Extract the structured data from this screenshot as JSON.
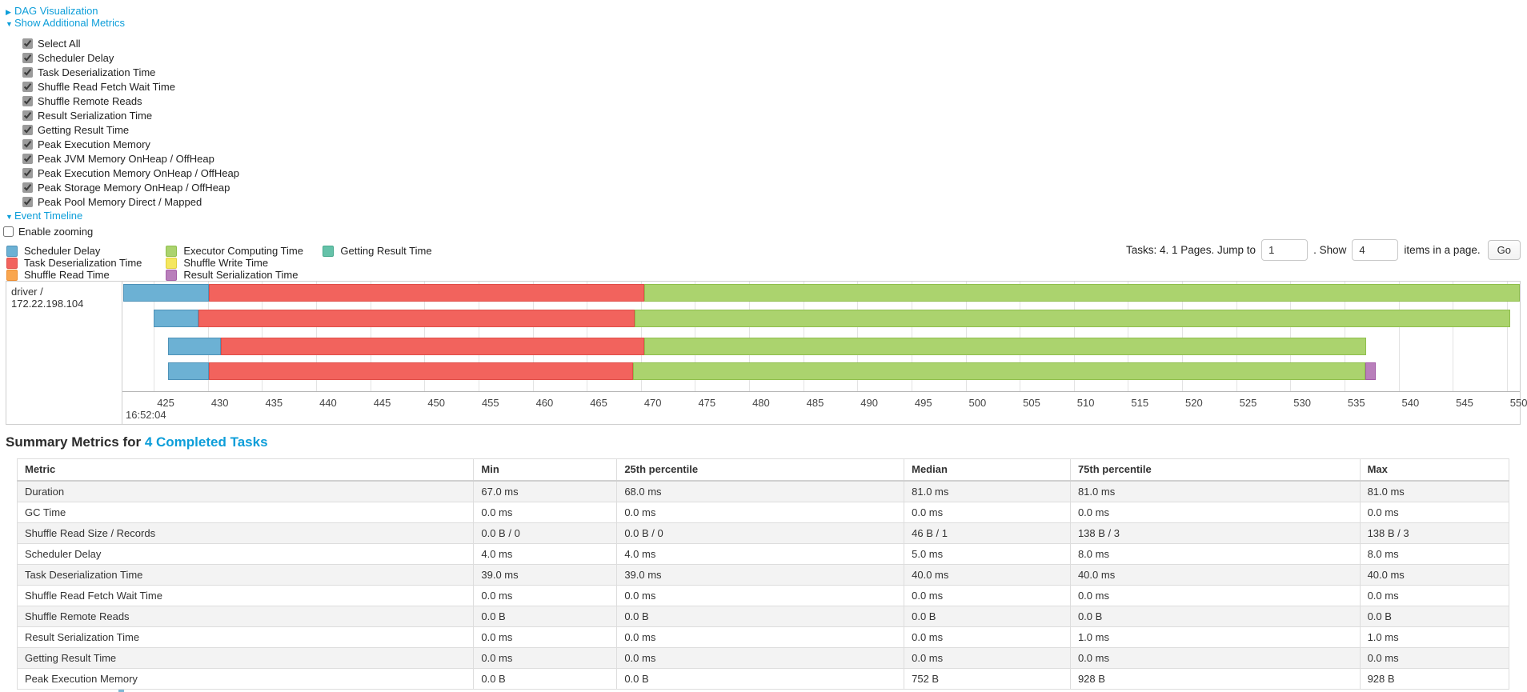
{
  "colors": {
    "link": "#0d9ed9",
    "scheduler_delay": {
      "fill": "#6CB1D4",
      "border": "#4E92B8"
    },
    "task_deserialization": {
      "fill": "#F2635D",
      "border": "#E04E48"
    },
    "shuffle_read": {
      "fill": "#F9A64F",
      "border": "#ED8B2D"
    },
    "executor_computing": {
      "fill": "#ABD36E",
      "border": "#8FBE4D"
    },
    "shuffle_write": {
      "fill": "#F5E75F",
      "border": "#E0CF3E"
    },
    "result_serialization": {
      "fill": "#B97FBB",
      "border": "#A55FA8"
    },
    "getting_result": {
      "fill": "#65C2A9",
      "border": "#45A98C"
    }
  },
  "controls": {
    "dag_label": "DAG Visualization",
    "dag_arrow": "▶",
    "metrics_label": "Show Additional Metrics",
    "metrics_arrow": "▼",
    "checkboxes": [
      {
        "label": "Select All",
        "checked": true
      },
      {
        "label": "Scheduler Delay",
        "checked": true
      },
      {
        "label": "Task Deserialization Time",
        "checked": true
      },
      {
        "label": "Shuffle Read Fetch Wait Time",
        "checked": true
      },
      {
        "label": "Shuffle Remote Reads",
        "checked": true
      },
      {
        "label": "Result Serialization Time",
        "checked": true
      },
      {
        "label": "Getting Result Time",
        "checked": true
      },
      {
        "label": "Peak Execution Memory",
        "checked": true
      },
      {
        "label": "Peak JVM Memory OnHeap / OffHeap",
        "checked": true
      },
      {
        "label": "Peak Execution Memory OnHeap / OffHeap",
        "checked": true
      },
      {
        "label": "Peak Storage Memory OnHeap / OffHeap",
        "checked": true
      },
      {
        "label": "Peak Pool Memory Direct / Mapped",
        "checked": true
      }
    ],
    "event_timeline_label": "Event Timeline",
    "event_timeline_arrow": "▼",
    "enable_zooming": {
      "label": "Enable zooming",
      "checked": false
    }
  },
  "legend": {
    "columns": [
      [
        {
          "label": "Scheduler Delay",
          "color": "scheduler_delay"
        },
        {
          "label": "Task Deserialization Time",
          "color": "task_deserialization"
        },
        {
          "label": "Shuffle Read Time",
          "color": "shuffle_read"
        }
      ],
      [
        {
          "label": "Executor Computing Time",
          "color": "executor_computing"
        },
        {
          "label": "Shuffle Write Time",
          "color": "shuffle_write"
        },
        {
          "label": "Result Serialization Time",
          "color": "result_serialization"
        }
      ],
      [
        {
          "label": "Getting Result Time",
          "color": "getting_result"
        }
      ]
    ]
  },
  "pagination": {
    "tasks_text": "Tasks: 4. 1 Pages. Jump to",
    "jump_value": "1",
    "show_text": ". Show",
    "show_value": "4",
    "items_text": "items in a page.",
    "go_label": "Go"
  },
  "timeline": {
    "row_label": "driver / 172.22.198.104",
    "t_min": 422.1,
    "t_max": 551.2,
    "ticks": [
      425,
      430,
      435,
      440,
      445,
      450,
      455,
      460,
      465,
      470,
      475,
      480,
      485,
      490,
      495,
      500,
      505,
      510,
      515,
      520,
      525,
      530,
      535,
      540,
      545,
      550
    ],
    "axis_sub_label": "16:52:04",
    "bars": [
      {
        "top": 3,
        "segments": [
          {
            "color": "scheduler_delay",
            "start": 422.2,
            "end": 430.1
          },
          {
            "color": "task_deserialization",
            "start": 430.1,
            "end": 470.3
          },
          {
            "color": "executor_computing",
            "start": 470.3,
            "end": 551.2
          }
        ]
      },
      {
        "top": 35,
        "segments": [
          {
            "color": "scheduler_delay",
            "start": 425.0,
            "end": 429.1
          },
          {
            "color": "task_deserialization",
            "start": 429.1,
            "end": 469.4
          },
          {
            "color": "executor_computing",
            "start": 469.4,
            "end": 550.3
          }
        ]
      },
      {
        "top": 70,
        "segments": [
          {
            "color": "scheduler_delay",
            "start": 426.3,
            "end": 431.2
          },
          {
            "color": "task_deserialization",
            "start": 431.2,
            "end": 470.3
          },
          {
            "color": "executor_computing",
            "start": 470.3,
            "end": 537.0
          }
        ]
      },
      {
        "top": 101,
        "segments": [
          {
            "color": "scheduler_delay",
            "start": 426.3,
            "end": 430.1
          },
          {
            "color": "task_deserialization",
            "start": 430.1,
            "end": 469.3
          },
          {
            "color": "executor_computing",
            "start": 469.3,
            "end": 536.9
          },
          {
            "color": "result_serialization",
            "start": 536.9,
            "end": 537.9
          }
        ]
      }
    ]
  },
  "summary": {
    "title_prefix": "Summary Metrics for ",
    "title_link": "4 Completed Tasks",
    "headers": [
      "Metric",
      "Min",
      "25th percentile",
      "Median",
      "75th percentile",
      "Max"
    ],
    "col_widths": [
      "30.6%",
      "9.6%",
      "19.25%",
      "11.15%",
      "19.4%",
      "10.0%"
    ],
    "rows": [
      {
        "metric": "Duration",
        "values": [
          "67.0 ms",
          "68.0 ms",
          "81.0 ms",
          "81.0 ms",
          "81.0 ms"
        ]
      },
      {
        "metric": "GC Time",
        "values": [
          "0.0 ms",
          "0.0 ms",
          "0.0 ms",
          "0.0 ms",
          "0.0 ms"
        ]
      },
      {
        "metric": "Shuffle Read Size / Records",
        "values": [
          "0.0 B / 0",
          "0.0 B / 0",
          "46 B / 1",
          "138 B / 3",
          "138 B / 3"
        ]
      },
      {
        "metric": "Scheduler Delay",
        "values": [
          "4.0 ms",
          "4.0 ms",
          "5.0 ms",
          "8.0 ms",
          "8.0 ms"
        ]
      },
      {
        "metric": "Task Deserialization Time",
        "values": [
          "39.0 ms",
          "39.0 ms",
          "40.0 ms",
          "40.0 ms",
          "40.0 ms"
        ]
      },
      {
        "metric": "Shuffle Read Fetch Wait Time",
        "values": [
          "0.0 ms",
          "0.0 ms",
          "0.0 ms",
          "0.0 ms",
          "0.0 ms"
        ]
      },
      {
        "metric": "Shuffle Remote Reads",
        "values": [
          "0.0 B",
          "0.0 B",
          "0.0 B",
          "0.0 B",
          "0.0 B"
        ]
      },
      {
        "metric": "Result Serialization Time",
        "values": [
          "0.0 ms",
          "0.0 ms",
          "0.0 ms",
          "1.0 ms",
          "1.0 ms"
        ]
      },
      {
        "metric": "Getting Result Time",
        "values": [
          "0.0 ms",
          "0.0 ms",
          "0.0 ms",
          "0.0 ms",
          "0.0 ms"
        ]
      },
      {
        "metric": "Peak Execution Memory",
        "values": [
          "0.0 B",
          "0.0 B",
          "752 B",
          "928 B",
          "928 B"
        ]
      }
    ]
  },
  "chart_data": {
    "type": "bar",
    "orientation": "horizontal-stacked-timeline",
    "group_label": "driver / 172.22.198.104",
    "x_unit": "ms within 16:52:04",
    "x_range": [
      422.1,
      551.2
    ],
    "x_ticks": [
      425,
      430,
      435,
      440,
      445,
      450,
      455,
      460,
      465,
      470,
      475,
      480,
      485,
      490,
      495,
      500,
      505,
      510,
      515,
      520,
      525,
      530,
      535,
      540,
      545,
      550
    ],
    "series_legend": [
      "Scheduler Delay",
      "Task Deserialization Time",
      "Shuffle Read Time",
      "Executor Computing Time",
      "Shuffle Write Time",
      "Result Serialization Time",
      "Getting Result Time"
    ],
    "tasks": [
      {
        "scheduler_delay": [
          422.2,
          430.1
        ],
        "task_deserialization": [
          430.1,
          470.3
        ],
        "executor_computing": [
          470.3,
          551.2
        ]
      },
      {
        "scheduler_delay": [
          425.0,
          429.1
        ],
        "task_deserialization": [
          429.1,
          469.4
        ],
        "executor_computing": [
          469.4,
          550.3
        ]
      },
      {
        "scheduler_delay": [
          426.3,
          431.2
        ],
        "task_deserialization": [
          431.2,
          470.3
        ],
        "executor_computing": [
          470.3,
          537.0
        ]
      },
      {
        "scheduler_delay": [
          426.3,
          430.1
        ],
        "task_deserialization": [
          430.1,
          469.3
        ],
        "executor_computing": [
          469.3,
          536.9
        ],
        "result_serialization": [
          536.9,
          537.9
        ]
      }
    ]
  }
}
